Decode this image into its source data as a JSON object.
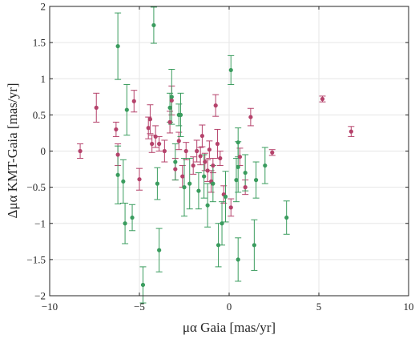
{
  "chart_data": {
    "type": "scatter",
    "title": "",
    "xlabel": "μα Gaia [mas/yr]",
    "ylabel": "Δμα KMT-Gaia [mas/yr]",
    "xlim": [
      -10,
      10
    ],
    "ylim": [
      -2,
      2
    ],
    "x_ticks": [
      -10,
      -5,
      0,
      5,
      10
    ],
    "y_ticks": [
      -2,
      -1.5,
      -1,
      -0.5,
      0,
      0.5,
      1,
      1.5,
      2
    ],
    "grid": true,
    "legend": "none",
    "series": [
      {
        "color": "#b5426b",
        "points": [
          {
            "x": -8.3,
            "y": 0.0,
            "err": 0.1
          },
          {
            "x": -7.4,
            "y": 0.6,
            "err": 0.2
          },
          {
            "x": -6.3,
            "y": 0.3,
            "err": 0.1
          },
          {
            "x": -6.2,
            "y": -0.05,
            "err": 0.15
          },
          {
            "x": -5.3,
            "y": 0.69,
            "err": 0.15
          },
          {
            "x": -5.0,
            "y": -0.39,
            "err": 0.15
          },
          {
            "x": -4.5,
            "y": 0.32,
            "err": 0.15
          },
          {
            "x": -4.4,
            "y": 0.44,
            "err": 0.2
          },
          {
            "x": -4.3,
            "y": 0.1,
            "err": 0.12
          },
          {
            "x": -4.1,
            "y": 0.2,
            "err": 0.15
          },
          {
            "x": -3.9,
            "y": 0.1,
            "err": 0.1
          },
          {
            "x": -3.6,
            "y": 0.0,
            "err": 0.15
          },
          {
            "x": -3.3,
            "y": 0.4,
            "err": 0.15
          },
          {
            "x": -3.2,
            "y": 0.7,
            "err": 0.2
          },
          {
            "x": -3.0,
            "y": -0.25,
            "err": 0.15
          },
          {
            "x": -2.8,
            "y": 0.14,
            "err": 0.12
          },
          {
            "x": -2.6,
            "y": -0.35,
            "err": 0.15
          },
          {
            "x": -2.4,
            "y": 0.0,
            "err": 0.12
          },
          {
            "x": -2.0,
            "y": -0.2,
            "err": 0.12
          },
          {
            "x": -1.8,
            "y": 0.0,
            "err": 0.15
          },
          {
            "x": -1.6,
            "y": -0.07,
            "err": 0.12
          },
          {
            "x": -1.5,
            "y": 0.21,
            "err": 0.15
          },
          {
            "x": -1.35,
            "y": -0.15,
            "err": 0.12
          },
          {
            "x": -1.2,
            "y": -0.27,
            "err": 0.15
          },
          {
            "x": -1.1,
            "y": 0.02,
            "err": 0.12
          },
          {
            "x": -1.0,
            "y": -0.42,
            "err": 0.15
          },
          {
            "x": -0.9,
            "y": -0.2,
            "err": 0.1
          },
          {
            "x": -0.75,
            "y": 0.63,
            "err": 0.15
          },
          {
            "x": -0.65,
            "y": 0.1,
            "err": 0.2
          },
          {
            "x": -0.5,
            "y": -0.1,
            "err": 0.1
          },
          {
            "x": -0.3,
            "y": -0.6,
            "err": 0.12
          },
          {
            "x": 0.1,
            "y": -0.78,
            "err": 0.12
          },
          {
            "x": 0.6,
            "y": -0.08,
            "err": 0.12
          },
          {
            "x": 0.9,
            "y": -0.5,
            "err": 0.1
          },
          {
            "x": 1.2,
            "y": 0.47,
            "err": 0.12
          },
          {
            "x": 2.4,
            "y": -0.02,
            "err": 0.04
          },
          {
            "x": 5.2,
            "y": 0.72,
            "err": 0.04
          },
          {
            "x": 6.8,
            "y": 0.27,
            "err": 0.07
          }
        ]
      },
      {
        "color": "#3a9c5e",
        "points": [
          {
            "x": -6.2,
            "y": 1.45,
            "err": 0.46
          },
          {
            "x": -6.2,
            "y": -0.33,
            "err": 0.4
          },
          {
            "x": -5.9,
            "y": -0.42,
            "err": 0.3
          },
          {
            "x": -5.8,
            "y": -1.0,
            "err": 0.28
          },
          {
            "x": -5.7,
            "y": 0.57,
            "err": 0.35
          },
          {
            "x": -5.4,
            "y": -0.92,
            "err": 0.18
          },
          {
            "x": -4.8,
            "y": -1.85,
            "err": 0.25
          },
          {
            "x": -4.2,
            "y": 1.74,
            "err": 0.25
          },
          {
            "x": -4.0,
            "y": -0.45,
            "err": 0.22
          },
          {
            "x": -3.9,
            "y": -1.37,
            "err": 0.3
          },
          {
            "x": -3.3,
            "y": 0.6,
            "err": 0.2
          },
          {
            "x": -3.2,
            "y": 0.75,
            "err": 0.38
          },
          {
            "x": -3.0,
            "y": -0.15,
            "err": 0.25
          },
          {
            "x": -2.8,
            "y": 0.5,
            "err": 0.15
          },
          {
            "x": -2.7,
            "y": 0.5,
            "err": 0.3
          },
          {
            "x": -2.5,
            "y": -0.5,
            "err": 0.4
          },
          {
            "x": -2.2,
            "y": -0.45,
            "err": 0.35
          },
          {
            "x": -1.7,
            "y": -0.55,
            "err": 0.25
          },
          {
            "x": -1.4,
            "y": -0.35,
            "err": 0.3
          },
          {
            "x": -1.2,
            "y": -0.75,
            "err": 0.3
          },
          {
            "x": -0.9,
            "y": -0.45,
            "err": 0.25
          },
          {
            "x": -0.6,
            "y": -1.3,
            "err": 0.3
          },
          {
            "x": -0.4,
            "y": -1.0,
            "err": 0.3
          },
          {
            "x": -0.2,
            "y": -0.63,
            "err": 0.35
          },
          {
            "x": 0.1,
            "y": 1.12,
            "err": 0.2
          },
          {
            "x": 0.4,
            "y": -0.4,
            "err": 0.3
          },
          {
            "x": 0.5,
            "y": -0.22,
            "err": 0.35
          },
          {
            "x": 0.5,
            "y": 0.12,
            "err": 0.2
          },
          {
            "x": 0.5,
            "y": -1.5,
            "err": 0.3
          },
          {
            "x": 0.9,
            "y": -0.3,
            "err": 0.25
          },
          {
            "x": 1.4,
            "y": -1.3,
            "err": 0.35
          },
          {
            "x": 1.5,
            "y": -0.4,
            "err": 0.25
          },
          {
            "x": 2.0,
            "y": -0.2,
            "err": 0.25
          },
          {
            "x": 3.2,
            "y": -0.92,
            "err": 0.23
          }
        ]
      }
    ]
  }
}
